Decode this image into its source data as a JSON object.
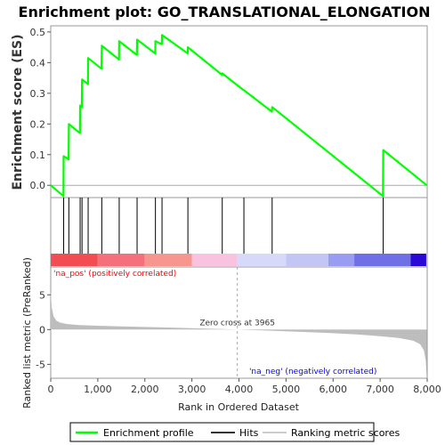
{
  "chart_data": {
    "type": "line",
    "title": "Enrichment plot: GO_TRANSLATIONAL_ELONGATION",
    "es_panel": {
      "ylabel": "Enrichment score (ES)",
      "xlim": [
        0,
        8000
      ],
      "ylim": [
        -0.04,
        0.52
      ],
      "yticks": [
        0.0,
        0.1,
        0.2,
        0.3,
        0.4,
        0.5
      ],
      "tick_labels": [
        "0.0",
        "0.1",
        "0.2",
        "0.3",
        "0.4",
        "0.5"
      ],
      "series": [
        {
          "name": "Enrichment profile",
          "color": "#00ff00",
          "x": [
            0,
            270,
            275,
            380,
            385,
            620,
            625,
            660,
            665,
            790,
            795,
            1080,
            1085,
            1450,
            1455,
            1830,
            1835,
            2220,
            2225,
            2360,
            2365,
            2910,
            2915,
            3640,
            3645,
            4100,
            4105,
            4700,
            4705,
            7060,
            7065,
            7990
          ],
          "y": [
            0.0,
            -0.035,
            0.095,
            0.085,
            0.2,
            0.17,
            0.26,
            0.255,
            0.345,
            0.33,
            0.415,
            0.38,
            0.455,
            0.41,
            0.47,
            0.425,
            0.475,
            0.43,
            0.47,
            0.46,
            0.49,
            0.43,
            0.45,
            0.36,
            0.365,
            0.31,
            0.31,
            0.24,
            0.255,
            -0.035,
            0.115,
            0.0
          ]
        }
      ]
    },
    "hits_panel": {
      "name": "Hits",
      "positions": [
        275,
        385,
        625,
        665,
        795,
        1085,
        1455,
        1835,
        2225,
        2365,
        2915,
        3645,
        4105,
        4705,
        7065
      ]
    },
    "rank_panel": {
      "ylabel": "Ranked list metric (PreRanked)",
      "xlabel": "Rank in Ordered Dataset",
      "xlim": [
        0,
        8000
      ],
      "ylim": [
        -7,
        9
      ],
      "yticks": [
        -5,
        0,
        5
      ],
      "xticks": [
        0,
        1000,
        2000,
        3000,
        4000,
        5000,
        6000,
        7000,
        8000
      ],
      "zero_cross": 3965,
      "zero_cross_label": "Zero cross at 3965",
      "pos_label": "'na_pos' (positively correlated)",
      "neg_label": "'na_neg' (negatively correlated)",
      "pos_color": "#ff0000",
      "neg_color": "#0000ff",
      "fill_color": "#bdbdbd",
      "profile": {
        "x": [
          0,
          20,
          60,
          120,
          200,
          350,
          600,
          1000,
          1500,
          2000,
          2500,
          3000,
          3500,
          3965,
          4500,
          5000,
          5500,
          6000,
          6500,
          7000,
          7400,
          7700,
          7850,
          7930,
          7970,
          7990
        ],
        "y": [
          5.6,
          3.2,
          1.9,
          1.3,
          1.0,
          0.8,
          0.65,
          0.55,
          0.45,
          0.37,
          0.3,
          0.2,
          0.1,
          0.0,
          -0.12,
          -0.25,
          -0.38,
          -0.52,
          -0.7,
          -0.95,
          -1.2,
          -1.6,
          -2.1,
          -3.0,
          -4.5,
          -6.8
        ]
      },
      "colorbar_bands": [
        {
          "from": 0,
          "to": 1000,
          "color": "#f24d52"
        },
        {
          "from": 1000,
          "to": 2000,
          "color": "#f4707b"
        },
        {
          "from": 2000,
          "to": 3000,
          "color": "#f7958f"
        },
        {
          "from": 3000,
          "to": 3965,
          "color": "#f9c2df"
        },
        {
          "from": 3965,
          "to": 5000,
          "color": "#d7d9fb"
        },
        {
          "from": 5000,
          "to": 5900,
          "color": "#c3c5f5"
        },
        {
          "from": 5900,
          "to": 6450,
          "color": "#9a9cf2"
        },
        {
          "from": 6450,
          "to": 7650,
          "color": "#6f70e6"
        },
        {
          "from": 7650,
          "to": 7980,
          "color": "#2a09d6"
        }
      ]
    },
    "legend": {
      "placement": "bottom",
      "items": [
        {
          "label": "Enrichment profile",
          "color": "#00ff00",
          "icon": "green-line"
        },
        {
          "label": "Hits",
          "color": "#333333",
          "icon": "dark-line"
        },
        {
          "label": "Ranking metric scores",
          "color": "#cccccc",
          "icon": "gray-line"
        }
      ]
    }
  }
}
